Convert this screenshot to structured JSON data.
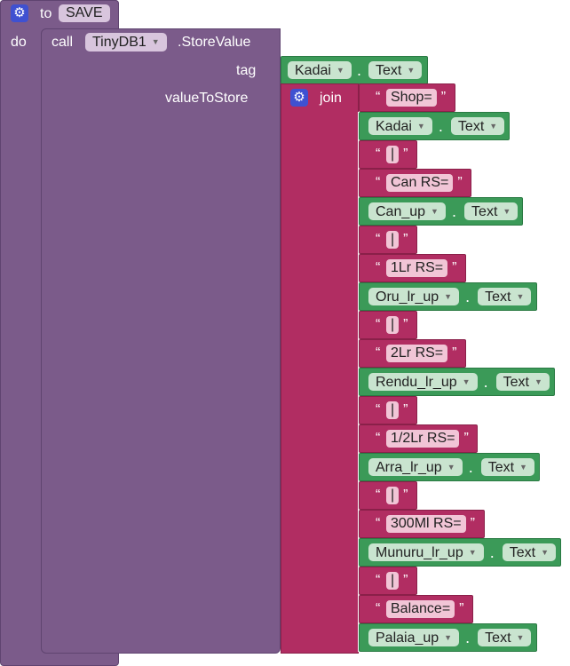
{
  "procedure": {
    "keyword_to": "to",
    "name": "SAVE",
    "keyword_do": "do"
  },
  "call": {
    "keyword": "call",
    "component": "TinyDB1",
    "method": ".StoreValue",
    "tag_label": "tag",
    "value_label": "valueToStore"
  },
  "tag_block": {
    "component": "Kadai",
    "property": "Text"
  },
  "join": {
    "label": "join",
    "items": [
      {
        "kind": "text",
        "value": "Shop="
      },
      {
        "kind": "prop",
        "component": "Kadai",
        "property": "Text"
      },
      {
        "kind": "text",
        "value": "|"
      },
      {
        "kind": "text",
        "value": "Can RS="
      },
      {
        "kind": "prop",
        "component": "Can_up",
        "property": "Text"
      },
      {
        "kind": "text",
        "value": "|"
      },
      {
        "kind": "text",
        "value": "1Lr RS="
      },
      {
        "kind": "prop",
        "component": "Oru_lr_up",
        "property": "Text"
      },
      {
        "kind": "text",
        "value": "|"
      },
      {
        "kind": "text",
        "value": "2Lr RS="
      },
      {
        "kind": "prop",
        "component": "Rendu_lr_up",
        "property": "Text"
      },
      {
        "kind": "text",
        "value": "|"
      },
      {
        "kind": "text",
        "value": "1/2Lr RS="
      },
      {
        "kind": "prop",
        "component": "Arra_lr_up",
        "property": "Text"
      },
      {
        "kind": "text",
        "value": "|"
      },
      {
        "kind": "text",
        "value": "300Ml RS="
      },
      {
        "kind": "prop",
        "component": "Munuru_lr_up",
        "property": "Text"
      },
      {
        "kind": "text",
        "value": "|"
      },
      {
        "kind": "text",
        "value": "Balance="
      },
      {
        "kind": "prop",
        "component": "Palaia_up",
        "property": "Text"
      }
    ]
  },
  "colors": {
    "procedure": "#7b5b8a",
    "text_block": "#b12d62",
    "component_block": "#3b9a58",
    "gear": "#3f51d1"
  },
  "icons": {
    "mutator": "gear-icon",
    "dropdown": "dropdown-arrow-icon"
  }
}
